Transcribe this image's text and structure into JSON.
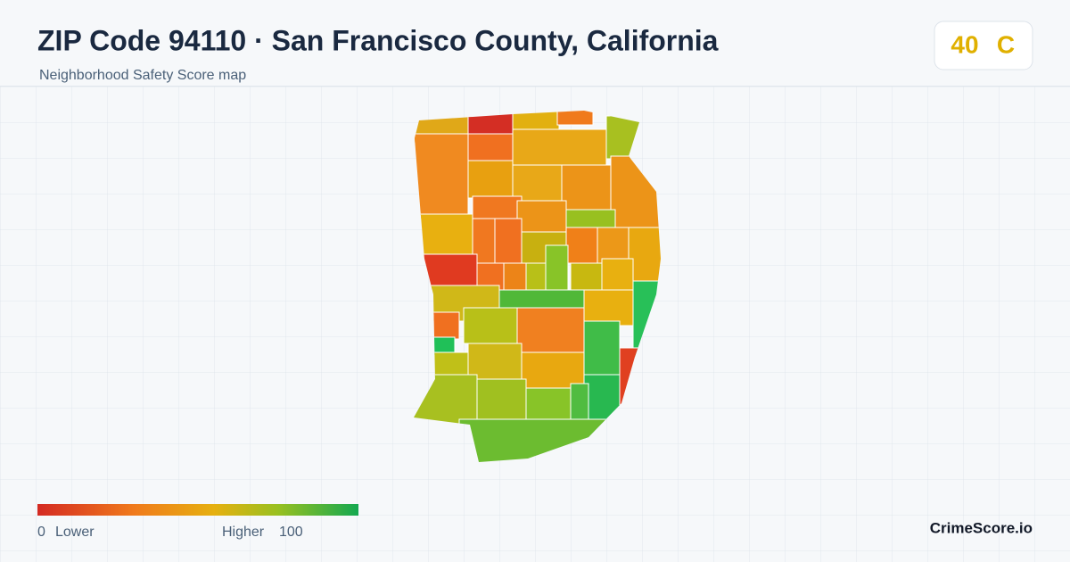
{
  "header": {
    "title": "ZIP Code 94110 · San Francisco County, California",
    "subtitle": "Neighborhood Safety Score map"
  },
  "score": {
    "value": "40",
    "grade": "C"
  },
  "legend": {
    "min": "0",
    "low_label": "Lower",
    "high_label": "Higher",
    "max": "100"
  },
  "brand": "CrimeScore.io"
}
